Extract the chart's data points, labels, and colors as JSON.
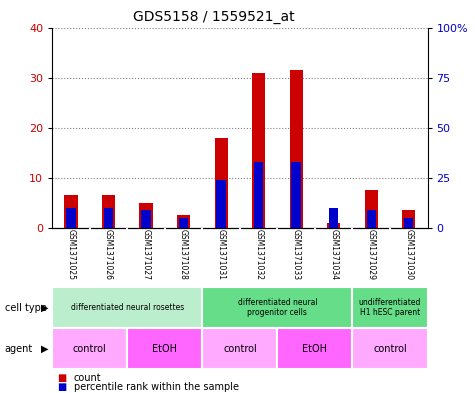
{
  "title": "GDS5158 / 1559521_at",
  "samples": [
    "GSM1371025",
    "GSM1371026",
    "GSM1371027",
    "GSM1371028",
    "GSM1371031",
    "GSM1371032",
    "GSM1371033",
    "GSM1371034",
    "GSM1371029",
    "GSM1371030"
  ],
  "counts": [
    6.5,
    6.5,
    5.0,
    2.5,
    18.0,
    31.0,
    31.5,
    1.0,
    7.5,
    3.5
  ],
  "percentile_ranks": [
    10.0,
    10.0,
    9.0,
    5.0,
    24.0,
    33.0,
    33.0,
    10.0,
    9.0,
    5.0
  ],
  "count_color": "#cc0000",
  "percentile_color": "#0000cc",
  "ylim_left": [
    0,
    40
  ],
  "ylim_right": [
    0,
    100
  ],
  "yticks_left": [
    0,
    10,
    20,
    30,
    40
  ],
  "yticks_right": [
    0,
    25,
    50,
    75,
    100
  ],
  "ytick_labels_right": [
    "0",
    "25",
    "50",
    "75",
    "100%"
  ],
  "cell_type_groups": [
    {
      "label": "differentiated neural rosettes",
      "start": 0,
      "end": 4,
      "color": "#bbeecc"
    },
    {
      "label": "differentiated neural\nprogenitor cells",
      "start": 4,
      "end": 8,
      "color": "#66dd88"
    },
    {
      "label": "undifferentiated\nH1 hESC parent",
      "start": 8,
      "end": 10,
      "color": "#66dd88"
    }
  ],
  "agent_groups": [
    {
      "label": "control",
      "start": 0,
      "end": 2,
      "color": "#ffaaff"
    },
    {
      "label": "EtOH",
      "start": 2,
      "end": 4,
      "color": "#ff66ff"
    },
    {
      "label": "control",
      "start": 4,
      "end": 6,
      "color": "#ffaaff"
    },
    {
      "label": "EtOH",
      "start": 6,
      "end": 8,
      "color": "#ff66ff"
    },
    {
      "label": "control",
      "start": 8,
      "end": 10,
      "color": "#ffaaff"
    }
  ],
  "bg_color": "#cccccc",
  "bar_width": 0.35,
  "percentile_bar_width": 0.25,
  "legend_count_label": "count",
  "legend_percentile_label": "percentile rank within the sample",
  "cell_type_label": "cell type",
  "agent_label": "agent"
}
